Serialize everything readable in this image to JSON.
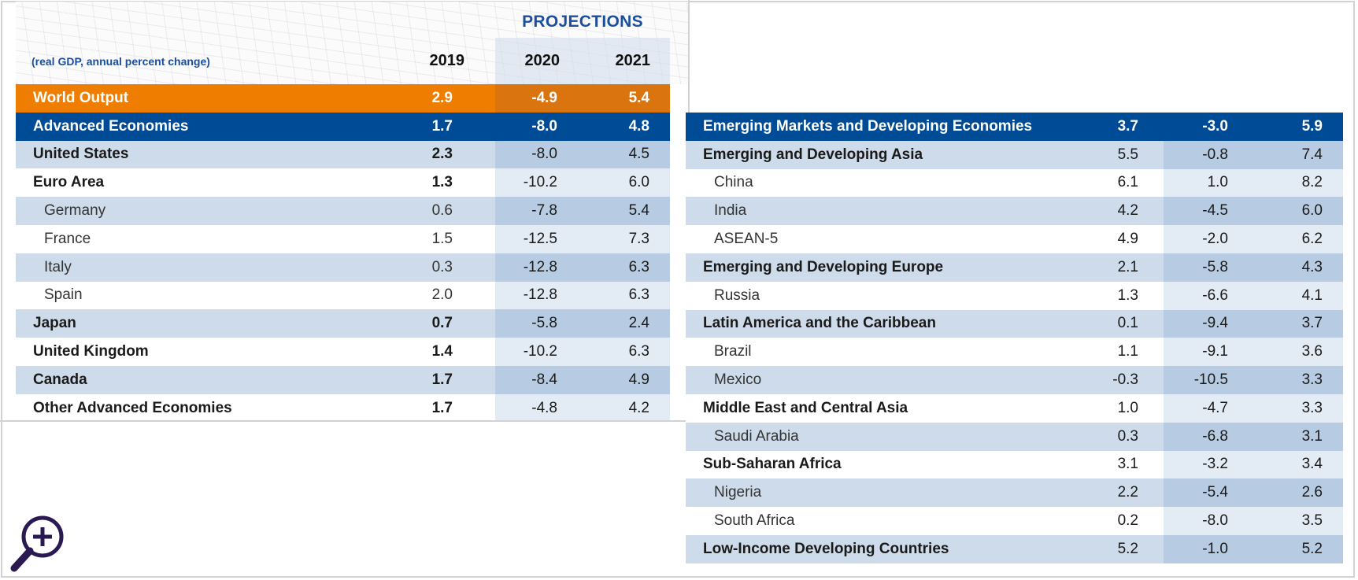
{
  "header": {
    "projections_label": "PROJECTIONS",
    "units_label": "(real GDP, annual percent change)",
    "years": [
      "2019",
      "2020",
      "2021"
    ]
  },
  "colors": {
    "world_output": "#ee7d00",
    "group_header": "#004b96",
    "shaded_row": "#cddbea",
    "projection_shade": "#b7cbe2",
    "title_blue": "#1b4f9c",
    "zoom_icon": "#2b1a52"
  },
  "left_table": {
    "rows": [
      {
        "name": "World Output",
        "y2019": "2.9",
        "y2020": "-4.9",
        "y2021": "5.4",
        "style": "orange"
      },
      {
        "name": "Advanced Economies",
        "y2019": "1.7",
        "y2020": "-8.0",
        "y2021": "4.8",
        "style": "blue"
      },
      {
        "name": "United States",
        "y2019": "2.3",
        "y2020": "-8.0",
        "y2021": "4.5",
        "style": "shade",
        "level": "bold"
      },
      {
        "name": "Euro Area",
        "y2019": "1.3",
        "y2020": "-10.2",
        "y2021": "6.0",
        "style": "white",
        "level": "bold"
      },
      {
        "name": "Germany",
        "y2019": "0.6",
        "y2020": "-7.8",
        "y2021": "5.4",
        "style": "shade",
        "level": "sub"
      },
      {
        "name": "France",
        "y2019": "1.5",
        "y2020": "-12.5",
        "y2021": "7.3",
        "style": "white",
        "level": "sub"
      },
      {
        "name": "Italy",
        "y2019": "0.3",
        "y2020": "-12.8",
        "y2021": "6.3",
        "style": "shade",
        "level": "sub"
      },
      {
        "name": "Spain",
        "y2019": "2.0",
        "y2020": "-12.8",
        "y2021": "6.3",
        "style": "white",
        "level": "sub"
      },
      {
        "name": "Japan",
        "y2019": "0.7",
        "y2020": "-5.8",
        "y2021": "2.4",
        "style": "shade",
        "level": "bold"
      },
      {
        "name": "United Kingdom",
        "y2019": "1.4",
        "y2020": "-10.2",
        "y2021": "6.3",
        "style": "white",
        "level": "bold"
      },
      {
        "name": "Canada",
        "y2019": "1.7",
        "y2020": "-8.4",
        "y2021": "4.9",
        "style": "shade",
        "level": "bold"
      },
      {
        "name": "Other Advanced Economies",
        "y2019": "1.7",
        "y2020": "-4.8",
        "y2021": "4.2",
        "style": "white",
        "level": "bold"
      }
    ]
  },
  "right_table": {
    "rows": [
      {
        "name": "Emerging Markets and Developing Economies",
        "y2019": "3.7",
        "y2020": "-3.0",
        "y2021": "5.9",
        "style": "blue"
      },
      {
        "name": "Emerging and Developing Asia",
        "y2019": "5.5",
        "y2020": "-0.8",
        "y2021": "7.4",
        "style": "shade",
        "level": "bold"
      },
      {
        "name": "China",
        "y2019": "6.1",
        "y2020": "1.0",
        "y2021": "8.2",
        "style": "white",
        "level": "sub"
      },
      {
        "name": "India",
        "y2019": "4.2",
        "y2020": "-4.5",
        "y2021": "6.0",
        "style": "shade",
        "level": "sub"
      },
      {
        "name": "ASEAN-5",
        "y2019": "4.9",
        "y2020": "-2.0",
        "y2021": "6.2",
        "style": "white",
        "level": "sub"
      },
      {
        "name": "Emerging and Developing Europe",
        "y2019": "2.1",
        "y2020": "-5.8",
        "y2021": "4.3",
        "style": "shade",
        "level": "bold"
      },
      {
        "name": "Russia",
        "y2019": "1.3",
        "y2020": "-6.6",
        "y2021": "4.1",
        "style": "white",
        "level": "sub"
      },
      {
        "name": "Latin America and the Caribbean",
        "y2019": "0.1",
        "y2020": "-9.4",
        "y2021": "3.7",
        "style": "shade",
        "level": "bold"
      },
      {
        "name": "Brazil",
        "y2019": "1.1",
        "y2020": "-9.1",
        "y2021": "3.6",
        "style": "white",
        "level": "sub"
      },
      {
        "name": "Mexico",
        "y2019": "-0.3",
        "y2020": "-10.5",
        "y2021": "3.3",
        "style": "shade",
        "level": "sub"
      },
      {
        "name": "Middle East and Central Asia",
        "y2019": "1.0",
        "y2020": "-4.7",
        "y2021": "3.3",
        "style": "white",
        "level": "bold"
      },
      {
        "name": "Saudi Arabia",
        "y2019": "0.3",
        "y2020": "-6.8",
        "y2021": "3.1",
        "style": "shade",
        "level": "sub"
      },
      {
        "name": "Sub-Saharan Africa",
        "y2019": "3.1",
        "y2020": "-3.2",
        "y2021": "3.4",
        "style": "white",
        "level": "bold"
      },
      {
        "name": "Nigeria",
        "y2019": "2.2",
        "y2020": "-5.4",
        "y2021": "2.6",
        "style": "shade",
        "level": "sub"
      },
      {
        "name": "South Africa",
        "y2019": "0.2",
        "y2020": "-8.0",
        "y2021": "3.5",
        "style": "white",
        "level": "sub"
      },
      {
        "name": "Low-Income Developing Countries",
        "y2019": "5.2",
        "y2020": "-1.0",
        "y2021": "5.2",
        "style": "shade",
        "level": "bold"
      }
    ]
  },
  "zoom_button": {
    "icon": "zoom-in-icon"
  }
}
